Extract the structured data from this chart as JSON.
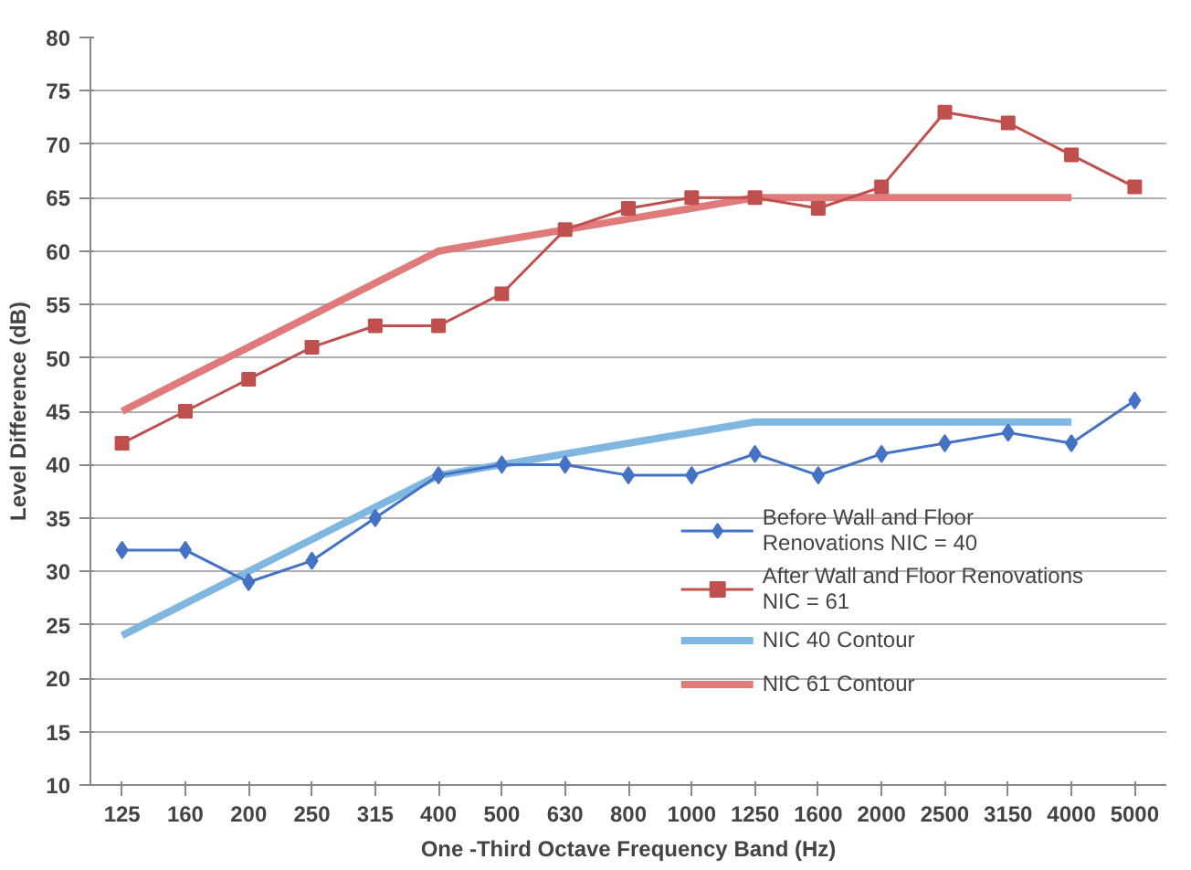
{
  "chart_data": {
    "type": "line",
    "xlabel": "One -Third Octave Frequency Band (Hz)",
    "ylabel": "Level Difference (dB)",
    "categories": [
      "125",
      "160",
      "200",
      "250",
      "315",
      "400",
      "500",
      "630",
      "800",
      "1000",
      "1250",
      "1600",
      "2000",
      "2500",
      "3150",
      "4000",
      "5000"
    ],
    "ylim": [
      10,
      80
    ],
    "yticks": [
      10,
      15,
      20,
      25,
      30,
      35,
      40,
      45,
      50,
      55,
      60,
      65,
      70,
      75,
      80
    ],
    "grid": "y",
    "legend": "bottom right",
    "series": [
      {
        "name": "Before Wall and Floor\nRenovations NIC = 40",
        "color": "#4472c4",
        "marker": "diamond",
        "values": [
          32,
          32,
          29,
          31,
          35,
          39,
          40,
          40,
          39,
          39,
          41,
          39,
          41,
          42,
          43,
          42,
          46
        ]
      },
      {
        "name": "After Wall and Floor Renovations\nNIC = 61",
        "color": "#c0504d",
        "marker": "square",
        "values": [
          42,
          45,
          48,
          51,
          53,
          53,
          56,
          62,
          64,
          65,
          65,
          64,
          66,
          73,
          72,
          69,
          66
        ]
      },
      {
        "name": "NIC 40 Contour",
        "color": "#7fb7e0",
        "marker": "none",
        "values": [
          24,
          27,
          30,
          33,
          36,
          39,
          40,
          41,
          42,
          43,
          44,
          44,
          44,
          44,
          44,
          44,
          null
        ]
      },
      {
        "name": "NIC 61 Contour",
        "color": "#e07b7b",
        "marker": "none",
        "values": [
          45,
          48,
          51,
          54,
          57,
          60,
          61,
          62,
          63,
          64,
          65,
          65,
          65,
          65,
          65,
          65,
          null
        ]
      }
    ]
  }
}
